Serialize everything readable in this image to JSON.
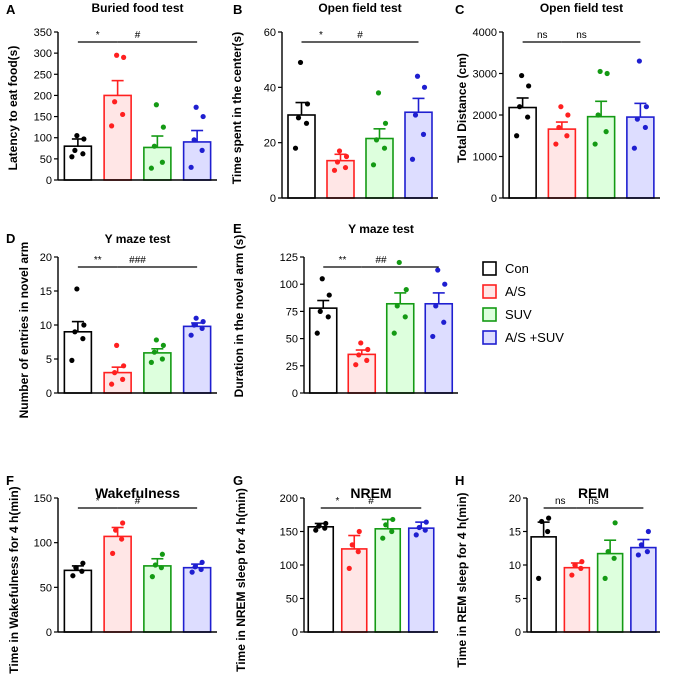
{
  "figure": {
    "legend": [
      {
        "label": "Con",
        "color": "#000000",
        "fill": "#ffffff"
      },
      {
        "label": "A/S",
        "color": "#ff2020",
        "fill": "#ffe6e6"
      },
      {
        "label": "SUV",
        "color": "#149a14",
        "fill": "#ddffdd"
      },
      {
        "label": "A/S +SUV",
        "color": "#1f1fd0",
        "fill": "#ddddff"
      }
    ]
  },
  "chart_data": [
    {
      "panel": "A",
      "type": "bar",
      "title": "Buried food test",
      "ylabel": "Latency to eat food(s)",
      "ylim": [
        0,
        350
      ],
      "yticks": [
        "0",
        "50",
        "100",
        "150",
        "200",
        "250",
        "300",
        "350"
      ],
      "categories": [
        "Con",
        "A/S",
        "SUV",
        "A/S +SUV"
      ],
      "values": [
        80,
        200,
        77,
        90
      ],
      "errors": [
        17,
        35,
        27,
        27
      ],
      "points": [
        [
          55,
          62,
          70,
          97,
          105
        ],
        [
          128,
          155,
          185,
          290,
          295
        ],
        [
          28,
          42,
          80,
          125,
          178
        ],
        [
          30,
          70,
          95,
          150,
          172
        ]
      ],
      "annotations": [
        {
          "from": 0,
          "to": 1,
          "label": "*"
        },
        {
          "from": 1,
          "to": 3,
          "label": "#"
        }
      ]
    },
    {
      "panel": "B",
      "type": "bar",
      "title": "Open field test",
      "ylabel": "Time spent in the center(s)",
      "ylim": [
        0,
        60
      ],
      "yticks": [
        "0",
        "20",
        "40",
        "60"
      ],
      "categories": [
        "Con",
        "A/S",
        "SUV",
        "A/S +SUV"
      ],
      "values": [
        30,
        13.5,
        21.5,
        31
      ],
      "errors": [
        4.5,
        2.3,
        3.5,
        5
      ],
      "points": [
        [
          18,
          27,
          29,
          34,
          49
        ],
        [
          10,
          11,
          13,
          15,
          17
        ],
        [
          12,
          18,
          21,
          27,
          38
        ],
        [
          14,
          23,
          30,
          40,
          44
        ]
      ],
      "annotations": [
        {
          "from": 0,
          "to": 1,
          "label": "*"
        },
        {
          "from": 1,
          "to": 3,
          "label": "#"
        }
      ]
    },
    {
      "panel": "C",
      "type": "bar",
      "title": "Open field test",
      "ylabel": "Total Distance (cm)",
      "ylim": [
        0,
        4000
      ],
      "yticks": [
        "0",
        "1000",
        "2000",
        "3000",
        "4000"
      ],
      "categories": [
        "Con",
        "A/S",
        "SUV",
        "A/S +SUV"
      ],
      "values": [
        2180,
        1660,
        1960,
        1950
      ],
      "errors": [
        230,
        170,
        370,
        330
      ],
      "points": [
        [
          1500,
          1950,
          2200,
          2700,
          2950
        ],
        [
          1300,
          1500,
          1700,
          2000,
          2200
        ],
        [
          1300,
          1600,
          2000,
          3000,
          3050
        ],
        [
          1200,
          1700,
          1900,
          2200,
          3300
        ]
      ],
      "annotations": [
        {
          "from": 0,
          "to": 1,
          "label": "ns"
        },
        {
          "from": 1,
          "to": 3,
          "label": "ns"
        }
      ]
    },
    {
      "panel": "D",
      "type": "bar",
      "title": "Y maze test",
      "ylabel": "Number of entries in novel  arm",
      "ylim": [
        0,
        20
      ],
      "yticks": [
        "0",
        "5",
        "10",
        "15",
        "20"
      ],
      "categories": [
        "Con",
        "A/S",
        "SUV",
        "A/S +SUV"
      ],
      "values": [
        9,
        3,
        5.9,
        9.8
      ],
      "errors": [
        1.5,
        0.8,
        0.6,
        0.5
      ],
      "points": [
        [
          4.8,
          8,
          9,
          10,
          15.3
        ],
        [
          1.3,
          2,
          3,
          4,
          7
        ],
        [
          4.5,
          5,
          6,
          7,
          7.8
        ],
        [
          8.5,
          9.5,
          10,
          10.5,
          11
        ]
      ],
      "annotations": [
        {
          "from": 0,
          "to": 1,
          "label": "**"
        },
        {
          "from": 1,
          "to": 3,
          "label": "###"
        }
      ]
    },
    {
      "panel": "E",
      "type": "bar",
      "title": "Y maze test",
      "ylabel": "Duration in the novel arm (s)",
      "ylim": [
        0,
        125
      ],
      "yticks": [
        "0",
        "25",
        "50",
        "75",
        "100",
        "125"
      ],
      "categories": [
        "Con",
        "A/S",
        "SUV",
        "A/S +SUV"
      ],
      "values": [
        78,
        35.5,
        82,
        82
      ],
      "errors": [
        7,
        4,
        10,
        10
      ],
      "points": [
        [
          55,
          70,
          75,
          90,
          105
        ],
        [
          26,
          30,
          35,
          40,
          46
        ],
        [
          55,
          70,
          80,
          95,
          120
        ],
        [
          52,
          65,
          80,
          100,
          113
        ]
      ],
      "annotations": [
        {
          "from": 0,
          "to": 1,
          "label": "**"
        },
        {
          "from": 1,
          "to": 3,
          "label": "##"
        }
      ]
    },
    {
      "panel": "F",
      "type": "bar",
      "title": "Wakefulness",
      "ylabel": "Time in Wakefulness for 4 h(min)",
      "ylim": [
        0,
        150
      ],
      "yticks": [
        "0",
        "50",
        "100",
        "150"
      ],
      "categories": [
        "Con",
        "A/S",
        "SUV",
        "A/S +SUV"
      ],
      "values": [
        69,
        107,
        74,
        72
      ],
      "errors": [
        5,
        10,
        8,
        4
      ],
      "points": [
        [
          63,
          68,
          72,
          77
        ],
        [
          88,
          104,
          114,
          122
        ],
        [
          62,
          72,
          75,
          87
        ],
        [
          67,
          70,
          73,
          78
        ]
      ],
      "annotations": [
        {
          "from": 0,
          "to": 1,
          "label": "*"
        },
        {
          "from": 1,
          "to": 3,
          "label": "#"
        }
      ]
    },
    {
      "panel": "G",
      "type": "bar",
      "title": "NREM",
      "ylabel": "Time in NREM sleep for 4 h(min)",
      "ylim": [
        0,
        200
      ],
      "yticks": [
        "0",
        "50",
        "100",
        "150",
        "200"
      ],
      "categories": [
        "Con",
        "A/S",
        "SUV",
        "A/S +SUV"
      ],
      "values": [
        157,
        124,
        154,
        155
      ],
      "errors": [
        5,
        20,
        14,
        9
      ],
      "points": [
        [
          152,
          155,
          158,
          162
        ],
        [
          95,
          120,
          130,
          150
        ],
        [
          140,
          150,
          160,
          168
        ],
        [
          145,
          152,
          156,
          164
        ]
      ],
      "annotations": [
        {
          "from": 0,
          "to": 1,
          "label": "*"
        },
        {
          "from": 1,
          "to": 3,
          "label": "#"
        }
      ]
    },
    {
      "panel": "H",
      "type": "bar",
      "title": "REM",
      "ylabel": "Time in REM sleep for 4 h(min)",
      "ylim": [
        0,
        20
      ],
      "yticks": [
        "0",
        "5",
        "10",
        "15",
        "20"
      ],
      "categories": [
        "Con",
        "A/S",
        "SUV",
        "A/S +SUV"
      ],
      "values": [
        14.2,
        9.6,
        11.7,
        12.6
      ],
      "errors": [
        2.2,
        0.7,
        2,
        1.2
      ],
      "points": [
        [
          8,
          15,
          16.5,
          17
        ],
        [
          8.5,
          9.5,
          10,
          10.5
        ],
        [
          8,
          11,
          12,
          16.3
        ],
        [
          11.5,
          12,
          13,
          15
        ]
      ],
      "annotations": [
        {
          "from": 0,
          "to": 1,
          "label": "ns"
        },
        {
          "from": 1,
          "to": 3,
          "label": "ns"
        }
      ]
    }
  ]
}
